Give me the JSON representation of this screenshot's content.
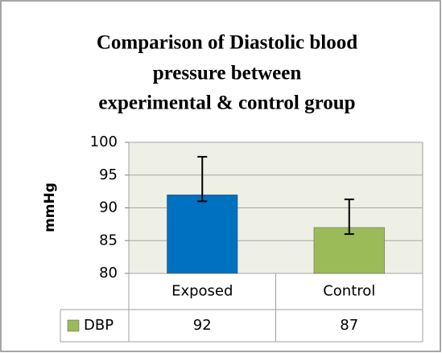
{
  "chart_data": {
    "type": "bar",
    "title": [
      "Comparison of Diastolic blood",
      "pressure between",
      "experimental & control group"
    ],
    "y_label": "mmHg",
    "categories": [
      "Exposed",
      "Control"
    ],
    "series": [
      {
        "name": "DBP",
        "color": "#9bbb59",
        "colors": [
          "#0070c0",
          "#9bbb59"
        ],
        "values": [
          92,
          87
        ],
        "error_plus": [
          5.8,
          4.3
        ],
        "error_minus": [
          1,
          1
        ]
      }
    ],
    "ylim": [
      80,
      100
    ],
    "yticks": [
      80,
      85,
      90,
      95,
      100
    ],
    "grid": true,
    "data_table": true
  }
}
